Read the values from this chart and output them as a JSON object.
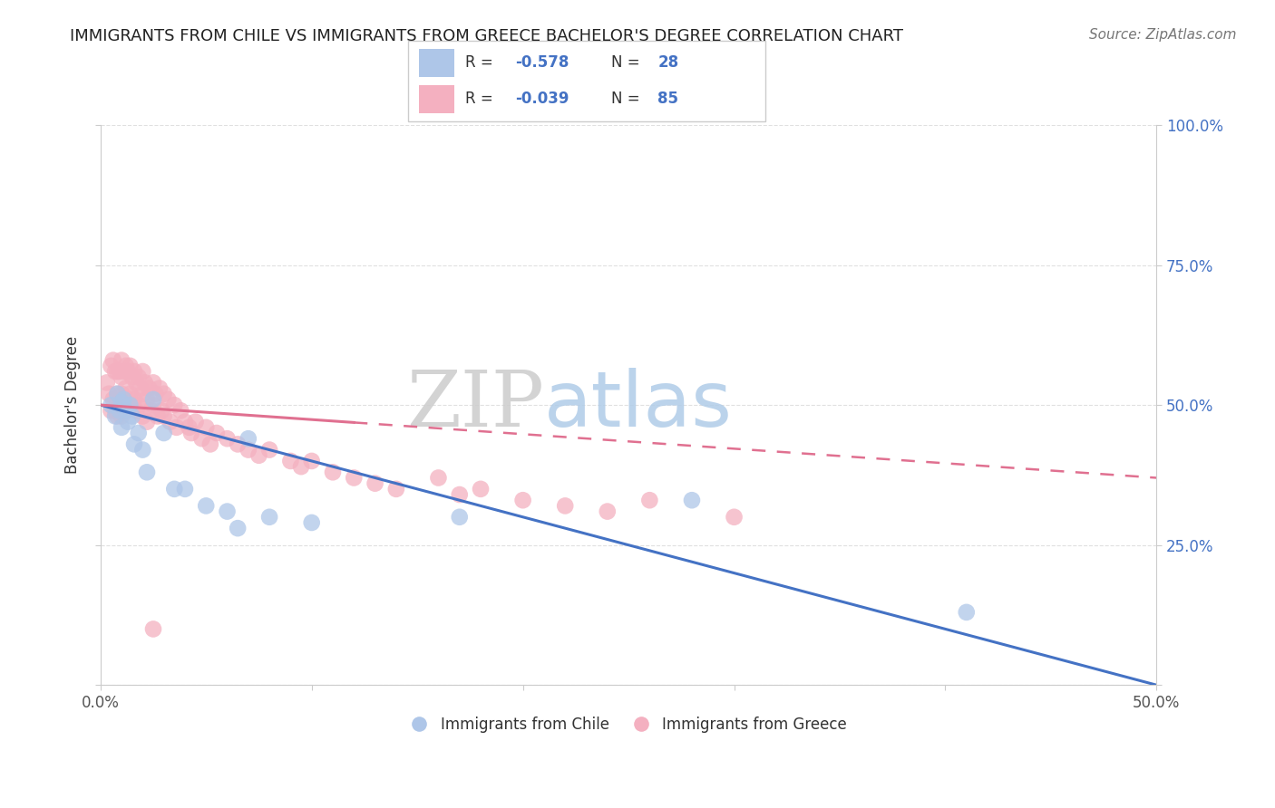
{
  "title": "IMMIGRANTS FROM CHILE VS IMMIGRANTS FROM GREECE BACHELOR'S DEGREE CORRELATION CHART",
  "source": "Source: ZipAtlas.com",
  "ylabel": "Bachelor's Degree",
  "xlim": [
    0.0,
    0.5
  ],
  "ylim": [
    0.0,
    1.0
  ],
  "xtick_vals": [
    0.0,
    0.1,
    0.2,
    0.3,
    0.4,
    0.5
  ],
  "xtick_labels": [
    "0.0%",
    "",
    "",
    "",
    "",
    "50.0%"
  ],
  "ytick_vals": [
    0.0,
    0.25,
    0.5,
    0.75,
    1.0
  ],
  "ytick_labels_right": [
    "",
    "25.0%",
    "50.0%",
    "75.0%",
    "100.0%"
  ],
  "chile_color": "#aec6e8",
  "chile_edge_color": "#aec6e8",
  "chile_line_color": "#4472c4",
  "greece_color": "#f4b0c0",
  "greece_edge_color": "#f4b0c0",
  "greece_line_color": "#e07090",
  "chile_R": -0.578,
  "chile_N": 28,
  "greece_R": -0.039,
  "greece_N": 85,
  "chile_line_x0": 0.0,
  "chile_line_y0": 0.5,
  "chile_line_x1": 0.5,
  "chile_line_y1": 0.0,
  "greece_line_x0": 0.0,
  "greece_line_y0": 0.5,
  "greece_line_x1": 0.5,
  "greece_line_y1": 0.37,
  "watermark_zip": "ZIP",
  "watermark_atlas": "atlas",
  "legend_label_chile": "Immigrants from Chile",
  "legend_label_greece": "Immigrants from Greece",
  "background_color": "#ffffff",
  "grid_color": "#e0e0e0",
  "title_color": "#222222",
  "source_color": "#777777",
  "legend_R_N_color": "#4472c4",
  "chile_scatter_x": [
    0.005,
    0.007,
    0.008,
    0.009,
    0.01,
    0.01,
    0.011,
    0.012,
    0.013,
    0.014,
    0.015,
    0.016,
    0.018,
    0.02,
    0.022,
    0.025,
    0.03,
    0.035,
    0.04,
    0.05,
    0.06,
    0.065,
    0.07,
    0.08,
    0.1,
    0.17,
    0.28,
    0.41
  ],
  "chile_scatter_y": [
    0.5,
    0.48,
    0.52,
    0.49,
    0.505,
    0.46,
    0.51,
    0.49,
    0.47,
    0.5,
    0.48,
    0.43,
    0.45,
    0.42,
    0.38,
    0.51,
    0.45,
    0.35,
    0.35,
    0.32,
    0.31,
    0.28,
    0.44,
    0.3,
    0.29,
    0.3,
    0.33,
    0.13
  ],
  "greece_scatter_x": [
    0.003,
    0.004,
    0.005,
    0.005,
    0.006,
    0.006,
    0.007,
    0.007,
    0.008,
    0.008,
    0.008,
    0.009,
    0.009,
    0.01,
    0.01,
    0.01,
    0.01,
    0.011,
    0.011,
    0.012,
    0.012,
    0.012,
    0.013,
    0.013,
    0.014,
    0.014,
    0.015,
    0.015,
    0.016,
    0.016,
    0.017,
    0.017,
    0.018,
    0.018,
    0.019,
    0.02,
    0.02,
    0.02,
    0.021,
    0.022,
    0.022,
    0.023,
    0.024,
    0.025,
    0.025,
    0.026,
    0.027,
    0.028,
    0.029,
    0.03,
    0.03,
    0.032,
    0.033,
    0.035,
    0.036,
    0.038,
    0.04,
    0.042,
    0.043,
    0.045,
    0.048,
    0.05,
    0.052,
    0.055,
    0.06,
    0.065,
    0.07,
    0.075,
    0.08,
    0.09,
    0.095,
    0.1,
    0.11,
    0.12,
    0.13,
    0.14,
    0.16,
    0.17,
    0.18,
    0.2,
    0.22,
    0.24,
    0.26,
    0.3,
    0.025
  ],
  "greece_scatter_y": [
    0.54,
    0.52,
    0.57,
    0.49,
    0.58,
    0.51,
    0.56,
    0.49,
    0.56,
    0.52,
    0.48,
    0.56,
    0.5,
    0.58,
    0.55,
    0.52,
    0.48,
    0.56,
    0.51,
    0.57,
    0.53,
    0.49,
    0.56,
    0.51,
    0.57,
    0.52,
    0.55,
    0.5,
    0.56,
    0.51,
    0.54,
    0.49,
    0.55,
    0.5,
    0.53,
    0.56,
    0.52,
    0.48,
    0.54,
    0.51,
    0.47,
    0.53,
    0.49,
    0.54,
    0.5,
    0.52,
    0.48,
    0.53,
    0.49,
    0.52,
    0.48,
    0.51,
    0.47,
    0.5,
    0.46,
    0.49,
    0.47,
    0.46,
    0.45,
    0.47,
    0.44,
    0.46,
    0.43,
    0.45,
    0.44,
    0.43,
    0.42,
    0.41,
    0.42,
    0.4,
    0.39,
    0.4,
    0.38,
    0.37,
    0.36,
    0.35,
    0.37,
    0.34,
    0.35,
    0.33,
    0.32,
    0.31,
    0.33,
    0.3,
    0.1
  ]
}
